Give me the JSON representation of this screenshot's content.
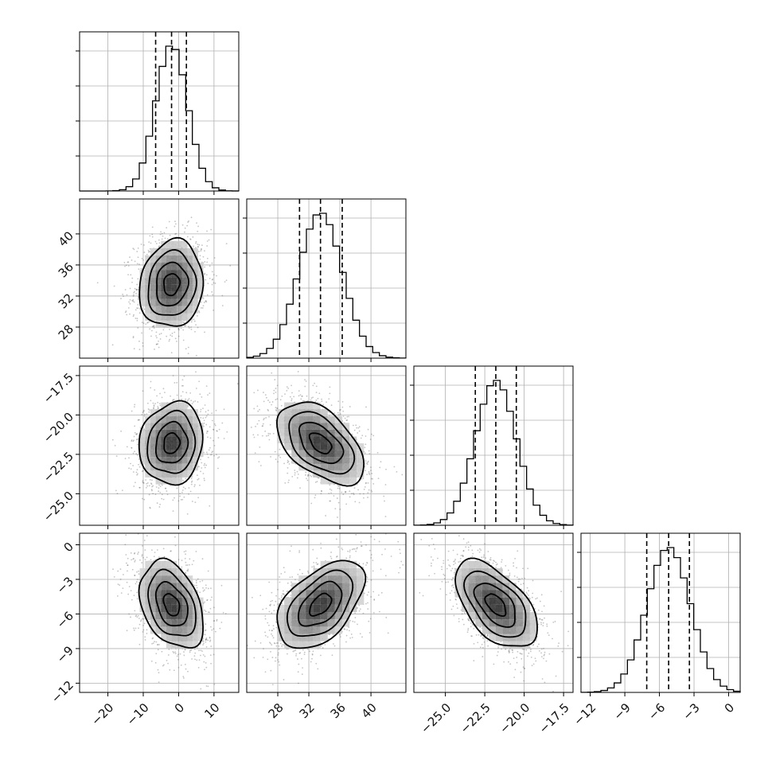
{
  "chart_data": {
    "type": "corner",
    "grid": true,
    "parameters": [
      {
        "range": [
          -28,
          17
        ],
        "ticks": [
          -20,
          -10,
          0,
          10
        ],
        "tick_labels": [
          "−20",
          "−10",
          "0",
          "10"
        ],
        "mean": -2,
        "sd": 4.5,
        "quantiles": [
          -6.5,
          -2,
          2.2
        ]
      },
      {
        "range": [
          24,
          44.5
        ],
        "ticks": [
          28,
          32,
          36,
          40
        ],
        "tick_labels": [
          "28",
          "32",
          "36",
          "40"
        ],
        "mean": 33.5,
        "sd": 2.8,
        "quantiles": [
          30.8,
          33.5,
          36.3
        ]
      },
      {
        "range": [
          -27,
          -16.9
        ],
        "ticks": [
          -25.0,
          -22.5,
          -20.0,
          -17.5
        ],
        "tick_labels": [
          "−25.0",
          "−22.5",
          "−20.0",
          "−17.5"
        ],
        "mean": -21.8,
        "sd": 1.3,
        "quantiles": [
          -23.1,
          -21.8,
          -20.5
        ]
      },
      {
        "range": [
          -12.8,
          1
        ],
        "ticks": [
          -12,
          -9,
          -6,
          -3,
          0
        ],
        "tick_labels": [
          "−12",
          "−9",
          "−6",
          "−3",
          "0"
        ],
        "mean": -5.2,
        "sd": 1.9,
        "quantiles": [
          -7.1,
          -5.2,
          -3.4
        ]
      }
    ],
    "correlations": [
      {
        "row": 1,
        "col": 0,
        "rho": 0.1
      },
      {
        "row": 2,
        "col": 0,
        "rho": 0.1
      },
      {
        "row": 2,
        "col": 1,
        "rho": -0.5
      },
      {
        "row": 3,
        "col": 0,
        "rho": -0.35
      },
      {
        "row": 3,
        "col": 1,
        "rho": 0.5
      },
      {
        "row": 3,
        "col": 2,
        "rho": -0.55
      }
    ]
  }
}
